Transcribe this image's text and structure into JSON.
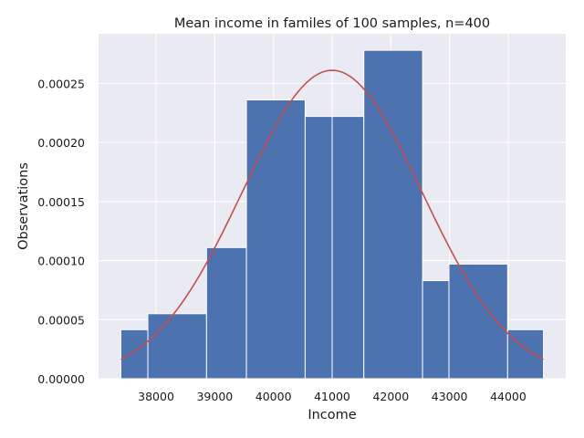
{
  "chart_data": {
    "type": "bar",
    "title": "Mean income in familes of 100 samples, n=400",
    "xlabel": "Income",
    "ylabel": "Observations",
    "xlim": [
      37020,
      44980
    ],
    "ylim": [
      0,
      0.000292
    ],
    "grid": true,
    "legend": "none",
    "x_ticks": [
      38000,
      39000,
      40000,
      41000,
      42000,
      43000,
      44000
    ],
    "x_tick_labels": [
      "38000",
      "39000",
      "40000",
      "41000",
      "42000",
      "43000",
      "44000"
    ],
    "y_ticks": [
      0,
      5e-05,
      0.0001,
      0.00015,
      0.0002,
      0.00025
    ],
    "y_tick_labels": [
      "0.00000",
      "0.00005",
      "0.00010",
      "0.00015",
      "0.00020",
      "0.00025"
    ],
    "bins": [
      {
        "x0": 37400,
        "x1": 37860,
        "value": 4.15e-05
      },
      {
        "x0": 37860,
        "x1": 38860,
        "value": 5.5e-05
      },
      {
        "x0": 38860,
        "x1": 39540,
        "value": 0.000111
      },
      {
        "x0": 39540,
        "x1": 40540,
        "value": 0.000236
      },
      {
        "x0": 40540,
        "x1": 41000,
        "value": 0.000222
      },
      {
        "x0": 41000,
        "x1": 41540,
        "value": 0.000222
      },
      {
        "x0": 41540,
        "x1": 42540,
        "value": 0.000278
      },
      {
        "x0": 42540,
        "x1": 42990,
        "value": 8.3e-05
      },
      {
        "x0": 42990,
        "x1": 43990,
        "value": 9.7e-05
      },
      {
        "x0": 43990,
        "x1": 44600,
        "value": 4.15e-05
      }
    ],
    "density_curve": {
      "mean": 41000,
      "std": 1528,
      "x_range": [
        37400,
        44600
      ]
    },
    "colors": {
      "background": "#eaeaf2",
      "grid": "#ffffff",
      "bar": "#4c72b0",
      "bar_edge": "#ffffff",
      "curve": "#c44e52"
    }
  }
}
